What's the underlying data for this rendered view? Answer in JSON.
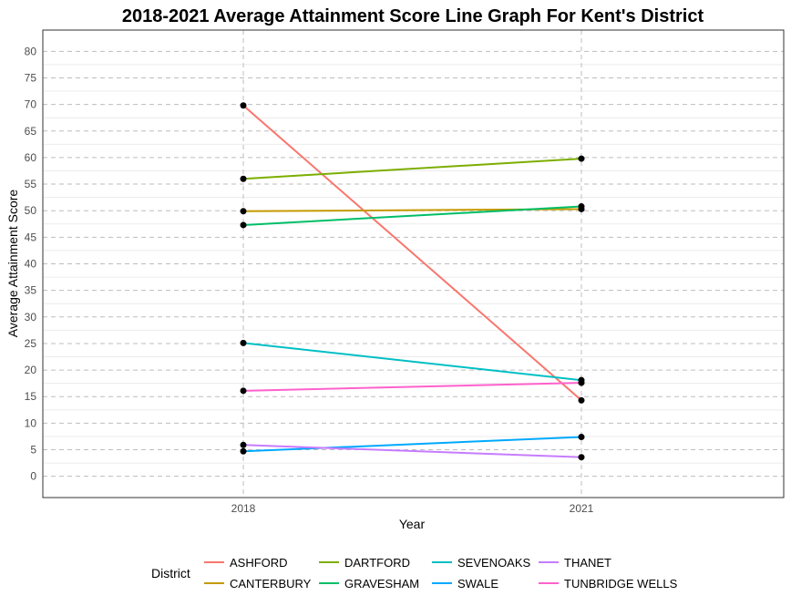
{
  "chart_data": {
    "type": "line",
    "title": "2018-2021 Average Attainment Score Line Graph For Kent's District",
    "xlabel": "Year",
    "ylabel": "Average Attainment Score",
    "x": [
      "2018",
      "2021"
    ],
    "ylim": [
      -4,
      84
    ],
    "yticks": [
      0,
      5,
      10,
      15,
      20,
      25,
      30,
      35,
      40,
      45,
      50,
      55,
      60,
      65,
      70,
      75,
      80
    ],
    "grid": true,
    "legend_title": "District",
    "legend_position": "bottom",
    "series": [
      {
        "name": "ASHFORD",
        "color": "#F8766D",
        "values": [
          69.8,
          14.3
        ]
      },
      {
        "name": "CANTERBURY",
        "color": "#C49A00",
        "values": [
          49.9,
          50.3
        ]
      },
      {
        "name": "DARTFORD",
        "color": "#7CAE00",
        "values": [
          56.0,
          59.8
        ]
      },
      {
        "name": "GRAVESHAM",
        "color": "#00BE67",
        "values": [
          47.3,
          50.8
        ]
      },
      {
        "name": "SEVENOAKS",
        "color": "#00BFC4",
        "values": [
          25.1,
          18.1
        ]
      },
      {
        "name": "SWALE",
        "color": "#00A9FF",
        "values": [
          4.7,
          7.4
        ]
      },
      {
        "name": "THANET",
        "color": "#C77CFF",
        "values": [
          5.9,
          3.6
        ]
      },
      {
        "name": "TUNBRIDGE WELLS",
        "color": "#FF61CC",
        "values": [
          16.1,
          17.6
        ]
      }
    ]
  }
}
